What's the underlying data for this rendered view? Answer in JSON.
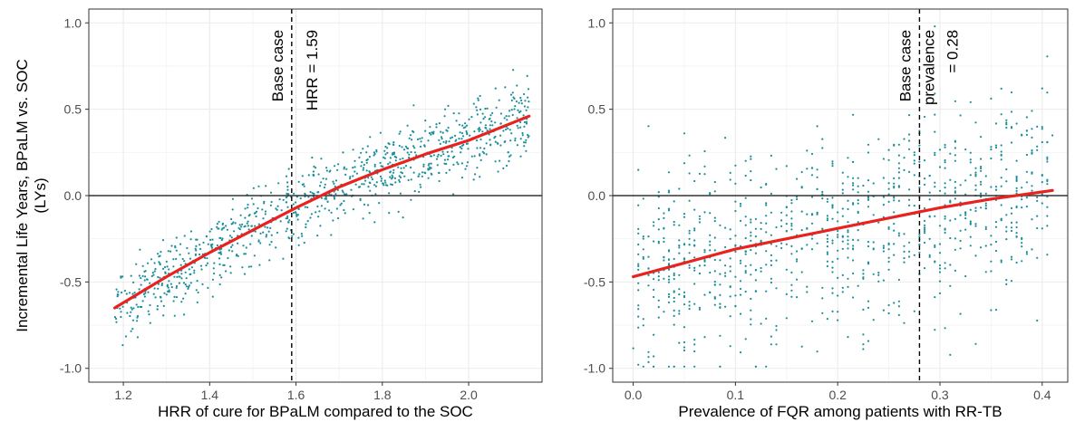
{
  "shared_ylabel": "Incremental Life Years, BPaLM vs. SOC\n(LYs)",
  "colors": {
    "points": "#1a8f9a",
    "trend": "#e8231f",
    "zero_line": "#333333",
    "reference_line": "#000000",
    "grid": "#ebebeb",
    "panel_border": "#333333"
  },
  "chart_data": [
    {
      "type": "scatter",
      "xlabel": "HRR of cure for BPaLM compared to the SOC",
      "xlim": [
        1.12,
        2.17
      ],
      "ylim": [
        -1.08,
        1.08
      ],
      "xticks": [
        1.2,
        1.4,
        1.6,
        1.8,
        2.0
      ],
      "xtick_labels": [
        "1.2",
        "1.4",
        "1.6",
        "1.8",
        "2.0"
      ],
      "yticks": [
        -1.0,
        -0.5,
        0.0,
        0.5,
        1.0
      ],
      "ytick_labels": [
        "-1.0",
        "-0.5",
        "0.0",
        "0.5",
        "1.0"
      ],
      "grid": true,
      "horizontal_line_y": 0.0,
      "reference_line": {
        "x": 1.59,
        "label_lines": [
          "Base case",
          "HRR = 1.59"
        ]
      },
      "scatter_summary": {
        "n_points": 1000,
        "x_range": [
          1.18,
          2.14
        ],
        "y_spread": 0.11
      },
      "trend_line": {
        "x": [
          1.18,
          1.3,
          1.4,
          1.5,
          1.6,
          1.7,
          1.8,
          1.9,
          2.0,
          2.14
        ],
        "y": [
          -0.65,
          -0.47,
          -0.33,
          -0.2,
          -0.07,
          0.05,
          0.15,
          0.24,
          0.32,
          0.46
        ]
      }
    },
    {
      "type": "scatter",
      "xlabel": "Prevalence of FQR among patients with RR-TB",
      "xlim": [
        -0.02,
        0.425
      ],
      "ylim": [
        -1.08,
        1.08
      ],
      "xticks": [
        0.0,
        0.1,
        0.2,
        0.3,
        0.4
      ],
      "xtick_labels": [
        "0.0",
        "0.1",
        "0.2",
        "0.3",
        "0.4"
      ],
      "yticks": [
        -1.0,
        -0.5,
        0.0,
        0.5,
        1.0
      ],
      "ytick_labels": [
        "-1.0",
        "-0.5",
        "0.0",
        "0.5",
        "1.0"
      ],
      "grid": true,
      "horizontal_line_y": 0.0,
      "reference_line": {
        "x": 0.28,
        "label_lines": [
          "Base case",
          "prevalence",
          "= 0.28"
        ]
      },
      "scatter_summary": {
        "n_points": 1000,
        "x_range": [
          0.0,
          0.41
        ],
        "y_spread": 0.3
      },
      "trend_line": {
        "x": [
          0.0,
          0.05,
          0.1,
          0.15,
          0.2,
          0.25,
          0.3,
          0.35,
          0.41
        ],
        "y": [
          -0.47,
          -0.39,
          -0.31,
          -0.25,
          -0.19,
          -0.13,
          -0.07,
          -0.02,
          0.03
        ]
      }
    }
  ]
}
